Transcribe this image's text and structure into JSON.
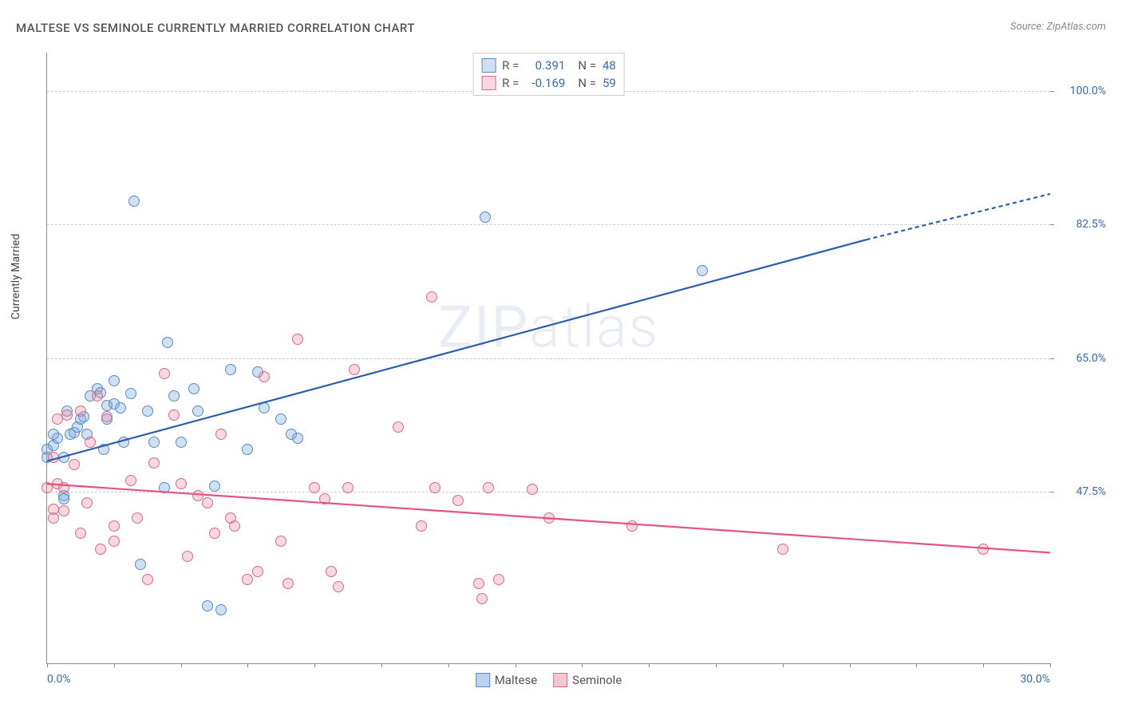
{
  "title": "MALTESE VS SEMINOLE CURRENTLY MARRIED CORRELATION CHART",
  "source": "Source: ZipAtlas.com",
  "y_axis_label": "Currently Married",
  "watermark": "ZIPatlas",
  "chart": {
    "type": "scatter",
    "xlim": [
      0,
      30
    ],
    "ylim": [
      25,
      105
    ],
    "x_ticks": [
      0,
      2,
      4,
      6,
      8,
      10,
      12,
      14,
      16,
      18,
      20,
      22,
      24,
      26,
      28,
      30
    ],
    "x_tick_labels": {
      "0": "0.0%",
      "30": "30.0%"
    },
    "y_ticks": [
      47.5,
      65.0,
      82.5,
      100.0
    ],
    "y_tick_labels": [
      "47.5%",
      "65.0%",
      "82.5%",
      "100.0%"
    ],
    "background_color": "#ffffff",
    "grid_color": "#cccccc",
    "axis_color": "#888888",
    "tick_label_color": "#3969b2",
    "series": [
      {
        "name": "Maltese",
        "color_fill": "rgba(120,165,220,0.35)",
        "color_stroke": "#5a8bc7",
        "marker_radius": 7,
        "R": "0.391",
        "N": "48",
        "trend": {
          "x1": 0,
          "y1": 51.5,
          "x2": 24.5,
          "y2": 80.5,
          "extend_x2": 30,
          "extend_y2": 86.5,
          "stroke": "#2a5db0",
          "width": 2.2
        },
        "points": [
          [
            0,
            53
          ],
          [
            0,
            52
          ],
          [
            0.2,
            53.5
          ],
          [
            0.3,
            54.5
          ],
          [
            0.2,
            55
          ],
          [
            0.5,
            47
          ],
          [
            0.5,
            46.5
          ],
          [
            0.6,
            58
          ],
          [
            0.7,
            55
          ],
          [
            0.8,
            55.2
          ],
          [
            0.9,
            56
          ],
          [
            1.0,
            57
          ],
          [
            1.1,
            57.3
          ],
          [
            1.2,
            55
          ],
          [
            1.3,
            60
          ],
          [
            1.5,
            61
          ],
          [
            1.6,
            60.5
          ],
          [
            1.7,
            53
          ],
          [
            1.8,
            58.8
          ],
          [
            1.8,
            57
          ],
          [
            2.0,
            62
          ],
          [
            2.0,
            59
          ],
          [
            2.2,
            58.5
          ],
          [
            2.3,
            54
          ],
          [
            2.5,
            60.3
          ],
          [
            2.6,
            85.5
          ],
          [
            2.8,
            38
          ],
          [
            3.0,
            58
          ],
          [
            3.2,
            54
          ],
          [
            3.5,
            48
          ],
          [
            3.6,
            67
          ],
          [
            3.8,
            60
          ],
          [
            4.0,
            54
          ],
          [
            4.4,
            61
          ],
          [
            4.5,
            58
          ],
          [
            4.8,
            32.5
          ],
          [
            5.0,
            48.2
          ],
          [
            5.2,
            32
          ],
          [
            5.5,
            63.5
          ],
          [
            6.0,
            53
          ],
          [
            6.3,
            63.2
          ],
          [
            6.5,
            58.5
          ],
          [
            7.0,
            57
          ],
          [
            7.3,
            55
          ],
          [
            7.5,
            54.5
          ],
          [
            13.1,
            83.5
          ],
          [
            19.6,
            76.5
          ],
          [
            0.5,
            52
          ]
        ]
      },
      {
        "name": "Seminole",
        "color_fill": "rgba(235,140,165,0.35)",
        "color_stroke": "#d96b8a",
        "marker_radius": 7,
        "R": "-0.169",
        "N": "59",
        "trend": {
          "x1": 0,
          "y1": 48.5,
          "x2": 30,
          "y2": 39.5,
          "stroke": "#e3557c",
          "width": 2.2
        },
        "points": [
          [
            0,
            48
          ],
          [
            0.2,
            52
          ],
          [
            0.2,
            45.2
          ],
          [
            0.2,
            44
          ],
          [
            0.3,
            48.5
          ],
          [
            0.3,
            57
          ],
          [
            0.5,
            48
          ],
          [
            0.5,
            45
          ],
          [
            0.6,
            57.5
          ],
          [
            0.8,
            51
          ],
          [
            1.0,
            42
          ],
          [
            1.0,
            58
          ],
          [
            1.2,
            46
          ],
          [
            1.3,
            54
          ],
          [
            1.5,
            60
          ],
          [
            1.6,
            40
          ],
          [
            1.8,
            57.3
          ],
          [
            2.0,
            43
          ],
          [
            2.0,
            41
          ],
          [
            2.5,
            49
          ],
          [
            2.7,
            44
          ],
          [
            3.0,
            36
          ],
          [
            3.2,
            51.3
          ],
          [
            3.5,
            63
          ],
          [
            3.8,
            57.5
          ],
          [
            4.0,
            48.5
          ],
          [
            4.2,
            39
          ],
          [
            4.5,
            47
          ],
          [
            4.8,
            46
          ],
          [
            5.0,
            42
          ],
          [
            5.2,
            55
          ],
          [
            5.5,
            44
          ],
          [
            5.6,
            43
          ],
          [
            6.0,
            36
          ],
          [
            6.3,
            37
          ],
          [
            6.5,
            62.5
          ],
          [
            7.0,
            41
          ],
          [
            7.2,
            35.5
          ],
          [
            7.5,
            67.5
          ],
          [
            8.0,
            48
          ],
          [
            8.3,
            46.5
          ],
          [
            8.5,
            37
          ],
          [
            8.7,
            35
          ],
          [
            9.0,
            48
          ],
          [
            9.2,
            63.5
          ],
          [
            10.5,
            56
          ],
          [
            11.2,
            43
          ],
          [
            11.5,
            73
          ],
          [
            11.6,
            48
          ],
          [
            12.3,
            46.3
          ],
          [
            12.9,
            35.5
          ],
          [
            13.0,
            33.5
          ],
          [
            13.2,
            48
          ],
          [
            13.5,
            36
          ],
          [
            14.5,
            47.8
          ],
          [
            15.0,
            44
          ],
          [
            17.5,
            43
          ],
          [
            22.0,
            40
          ],
          [
            28.0,
            40
          ]
        ]
      }
    ]
  },
  "legend_bottom": [
    {
      "label": "Maltese",
      "fill": "rgba(120,165,220,0.5)",
      "stroke": "#5a8bc7"
    },
    {
      "label": "Seminole",
      "fill": "rgba(235,140,165,0.5)",
      "stroke": "#d96b8a"
    }
  ],
  "legend_top": {
    "R_label": "R",
    "N_label": "N",
    "value_color": "#3969b2"
  }
}
